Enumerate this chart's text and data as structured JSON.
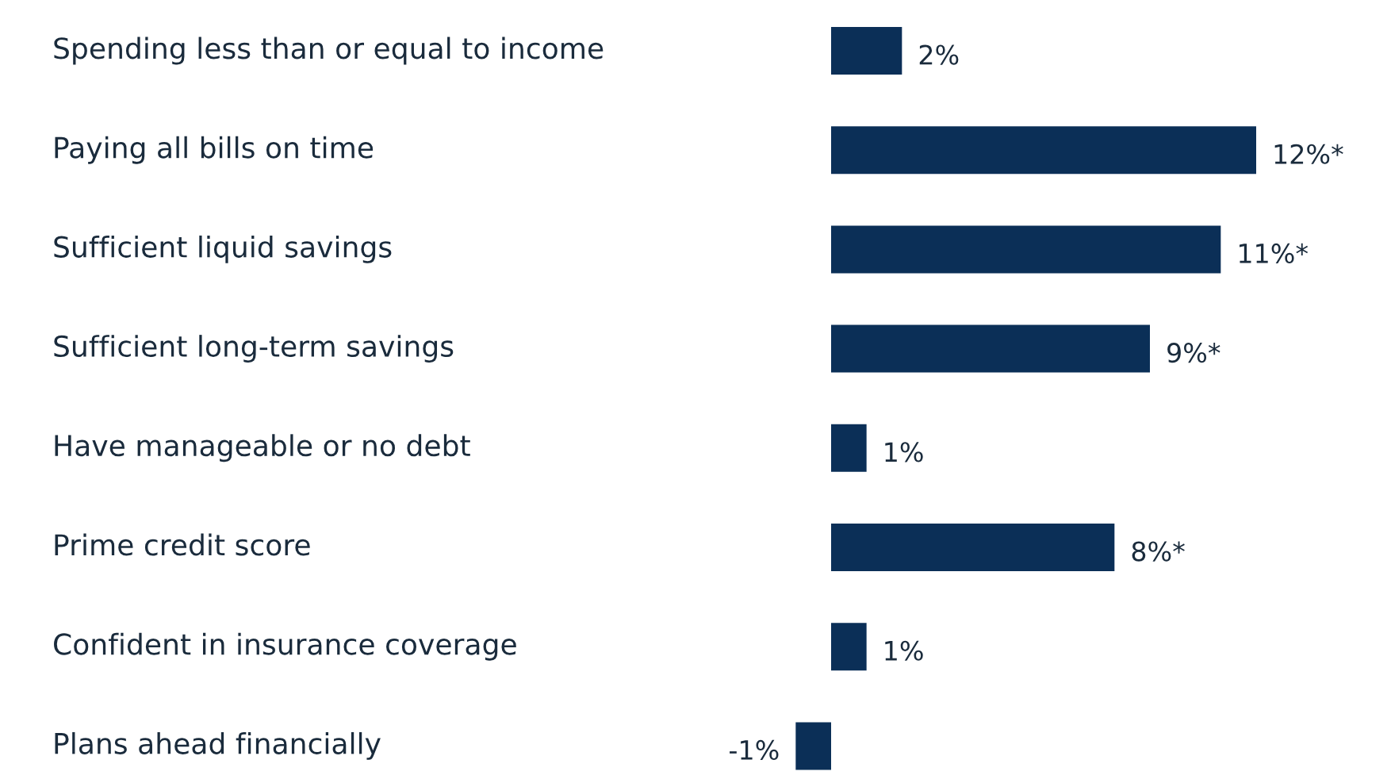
{
  "chart_data": {
    "type": "bar",
    "orientation": "horizontal",
    "categories": [
      "Spending less than or equal to income",
      "Paying all bills on time",
      "Sufficient liquid savings",
      "Sufficient long-term savings",
      "Have manageable or no debt",
      "Prime credit score",
      "Confident in insurance coverage",
      "Plans ahead financially"
    ],
    "values": [
      2,
      12,
      11,
      9,
      1,
      8,
      1,
      -1
    ],
    "value_labels": [
      "2%",
      "12%*",
      "11%*",
      "9%*",
      "1%",
      "8%*",
      "1%",
      "-1%"
    ],
    "color": "#0b2f57",
    "tick_labels": false
  }
}
